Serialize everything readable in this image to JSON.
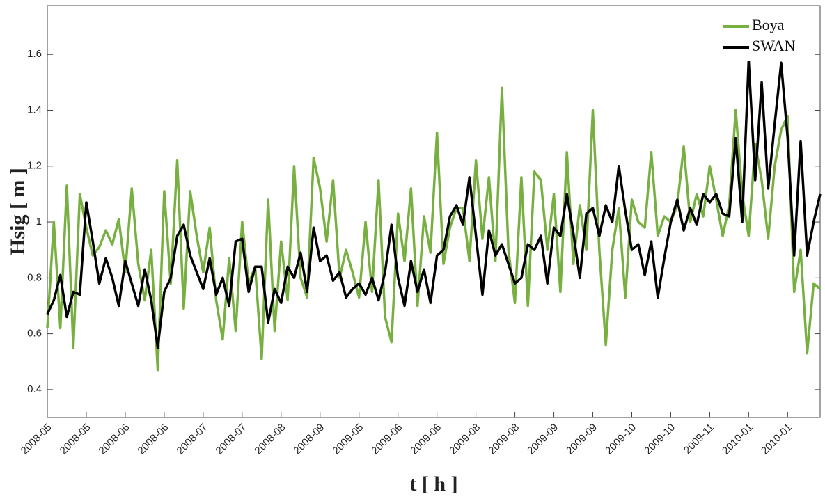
{
  "chart_data": {
    "type": "line",
    "xlabel": "t [ h ]",
    "ylabel": "Hsig [ m ]",
    "ylim": [
      0.3,
      1.775
    ],
    "yticks": [
      0.4,
      0.6,
      0.8,
      1,
      1.2,
      1.4,
      1.6
    ],
    "legend": "upper right",
    "categories": [
      "2008-05",
      null,
      null,
      null,
      null,
      null,
      "2008-05",
      null,
      null,
      null,
      null,
      null,
      "2008-06",
      null,
      null,
      null,
      null,
      null,
      "2008-06",
      null,
      null,
      null,
      null,
      null,
      "2008-07",
      null,
      null,
      null,
      null,
      null,
      "2008-07",
      null,
      null,
      null,
      null,
      null,
      "2008-08",
      null,
      null,
      null,
      null,
      null,
      "2008-09",
      null,
      null,
      null,
      null,
      null,
      "2009-05",
      null,
      null,
      null,
      null,
      null,
      "2009-06",
      null,
      null,
      null,
      null,
      null,
      "2009-06",
      null,
      null,
      null,
      null,
      null,
      "2009-08",
      null,
      null,
      null,
      null,
      null,
      "2009-08",
      null,
      null,
      null,
      null,
      null,
      "2009-09",
      null,
      null,
      null,
      null,
      null,
      "2009-09",
      null,
      null,
      null,
      null,
      null,
      "2009-10",
      null,
      null,
      null,
      null,
      null,
      "2009-10",
      null,
      null,
      null,
      null,
      null,
      "2009-11",
      null,
      null,
      null,
      null,
      null,
      "2010-01",
      null,
      null,
      null,
      null,
      null,
      "2010-01",
      null,
      null,
      null,
      null,
      null
    ],
    "series": [
      {
        "name": "Boya",
        "color": "#77b041",
        "values": [
          0.62,
          1.0,
          0.62,
          1.13,
          0.55,
          1.1,
          0.98,
          0.88,
          0.91,
          0.97,
          0.92,
          1.01,
          0.82,
          1.12,
          0.85,
          0.72,
          0.9,
          0.47,
          1.11,
          0.78,
          1.22,
          0.69,
          1.11,
          0.95,
          0.82,
          0.98,
          0.72,
          0.58,
          0.87,
          0.61,
          1.0,
          0.78,
          0.84,
          0.51,
          1.08,
          0.61,
          0.93,
          0.72,
          1.2,
          0.8,
          0.73,
          1.23,
          1.12,
          0.93,
          1.15,
          0.8,
          0.9,
          0.82,
          0.73,
          1.0,
          0.75,
          1.15,
          0.66,
          0.57,
          1.03,
          0.86,
          1.12,
          0.7,
          1.02,
          0.89,
          1.32,
          0.85,
          0.98,
          1.05,
          1.05,
          0.86,
          1.22,
          0.94,
          1.16,
          0.86,
          1.48,
          0.9,
          0.71,
          1.16,
          0.7,
          1.18,
          1.15,
          0.9,
          1.1,
          0.75,
          1.25,
          0.85,
          1.06,
          0.9,
          1.4,
          0.9,
          0.56,
          0.9,
          1.05,
          0.73,
          1.08,
          1.0,
          0.98,
          1.25,
          0.95,
          1.02,
          1.0,
          1.06,
          1.27,
          1.0,
          1.1,
          1.02,
          1.2,
          1.08,
          0.95,
          1.06,
          1.4,
          1.1,
          0.95,
          1.28,
          1.15,
          0.94,
          1.2,
          1.33,
          1.38,
          0.75,
          0.9,
          0.53,
          0.78,
          0.76
        ]
      },
      {
        "name": "SWAN",
        "color": "#000000",
        "values": [
          0.67,
          0.72,
          0.81,
          0.66,
          0.75,
          0.74,
          1.07,
          0.93,
          0.78,
          0.87,
          0.8,
          0.7,
          0.86,
          0.78,
          0.7,
          0.83,
          0.72,
          0.55,
          0.75,
          0.8,
          0.95,
          0.99,
          0.88,
          0.82,
          0.76,
          0.87,
          0.74,
          0.8,
          0.7,
          0.93,
          0.94,
          0.75,
          0.84,
          0.84,
          0.64,
          0.76,
          0.71,
          0.84,
          0.8,
          0.89,
          0.75,
          0.98,
          0.86,
          0.88,
          0.79,
          0.82,
          0.73,
          0.76,
          0.78,
          0.74,
          0.8,
          0.72,
          0.82,
          0.99,
          0.8,
          0.7,
          0.86,
          0.75,
          0.83,
          0.71,
          0.88,
          0.9,
          1.02,
          1.06,
          0.99,
          1.16,
          0.95,
          0.74,
          0.97,
          0.88,
          0.92,
          0.85,
          0.78,
          0.8,
          0.92,
          0.9,
          0.95,
          0.78,
          0.98,
          0.95,
          1.1,
          0.96,
          0.8,
          1.03,
          1.05,
          0.95,
          1.06,
          1.0,
          1.2,
          1.04,
          0.9,
          0.92,
          0.81,
          0.93,
          0.73,
          0.87,
          1.0,
          1.08,
          0.97,
          1.05,
          0.99,
          1.1,
          1.07,
          1.1,
          1.03,
          1.02,
          1.3,
          1.0,
          1.58,
          1.15,
          1.5,
          1.12,
          1.35,
          1.57,
          1.3,
          0.88,
          1.29,
          0.88,
          1.0,
          1.1
        ]
      }
    ]
  }
}
